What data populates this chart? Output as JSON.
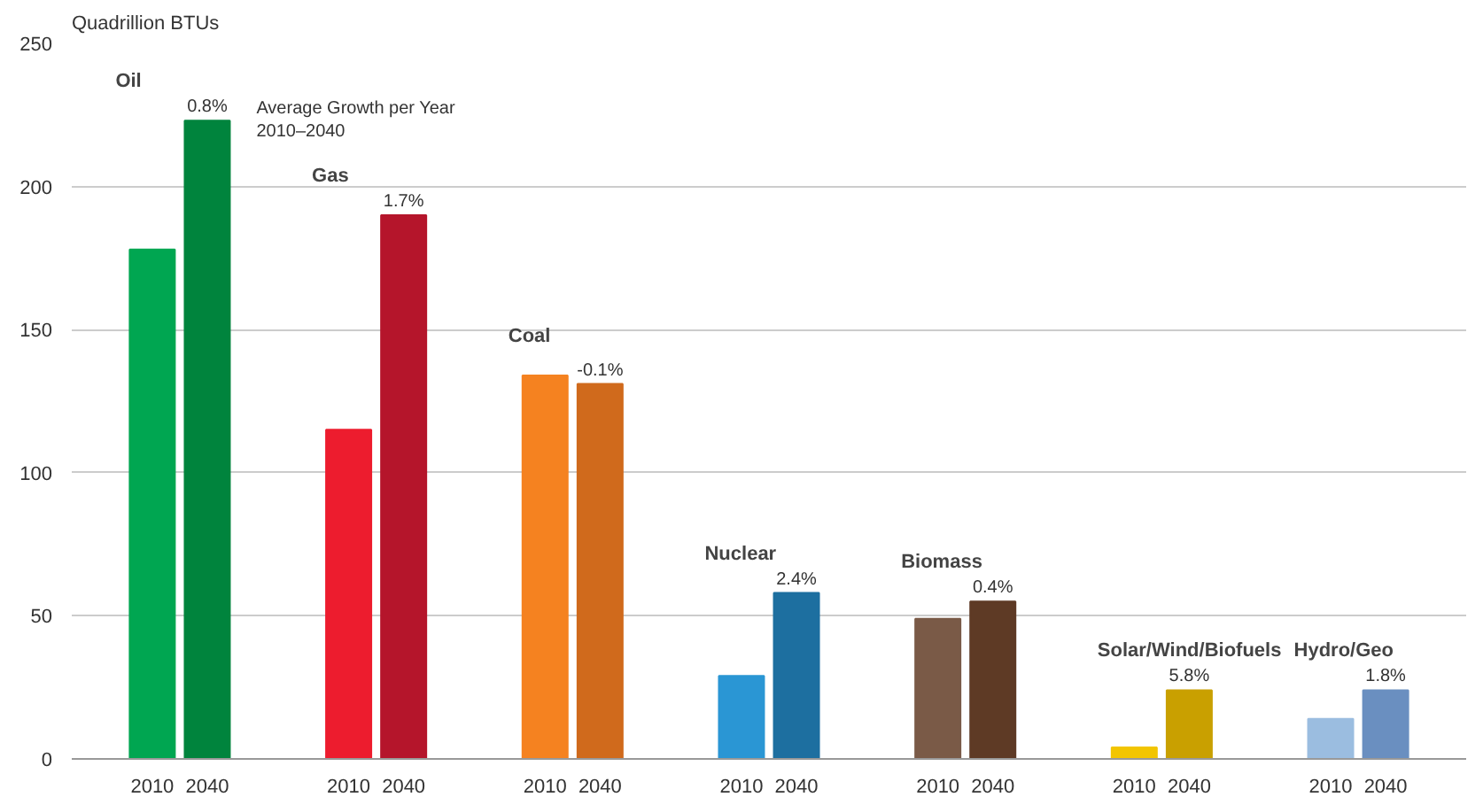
{
  "chart_data": {
    "type": "bar",
    "ylabel": "Quadrillion BTUs",
    "categories": [
      "Oil",
      "Gas",
      "Coal",
      "Nuclear",
      "Biomass",
      "Solar/Wind/Biofuels",
      "Hydro/Geo"
    ],
    "series": [
      {
        "name": "2010",
        "colors": [
          "#00a651",
          "#ed1c2e",
          "#f58220",
          "#2a96d4",
          "#7a5a47",
          "#f2c500",
          "#9bbde0"
        ],
        "values": [
          178,
          115,
          134,
          29,
          49,
          4,
          14
        ]
      },
      {
        "name": "2040",
        "colors": [
          "#00843d",
          "#b5152b",
          "#d06a1c",
          "#1d6fa0",
          "#5e3a25",
          "#c9a000",
          "#6a8fc0"
        ],
        "values": [
          223,
          190,
          131,
          58,
          55,
          24,
          24
        ]
      }
    ],
    "ylim": [
      0,
      250
    ],
    "yticks": [
      0,
      50,
      100,
      150,
      200,
      250
    ],
    "grid": "y",
    "annotations": [
      "0.8%",
      "1.7%",
      "-0.1%",
      "2.4%",
      "0.4%",
      "5.8%",
      "1.8%",
      "Average Growth per Year\n2010–2040"
    ]
  }
}
